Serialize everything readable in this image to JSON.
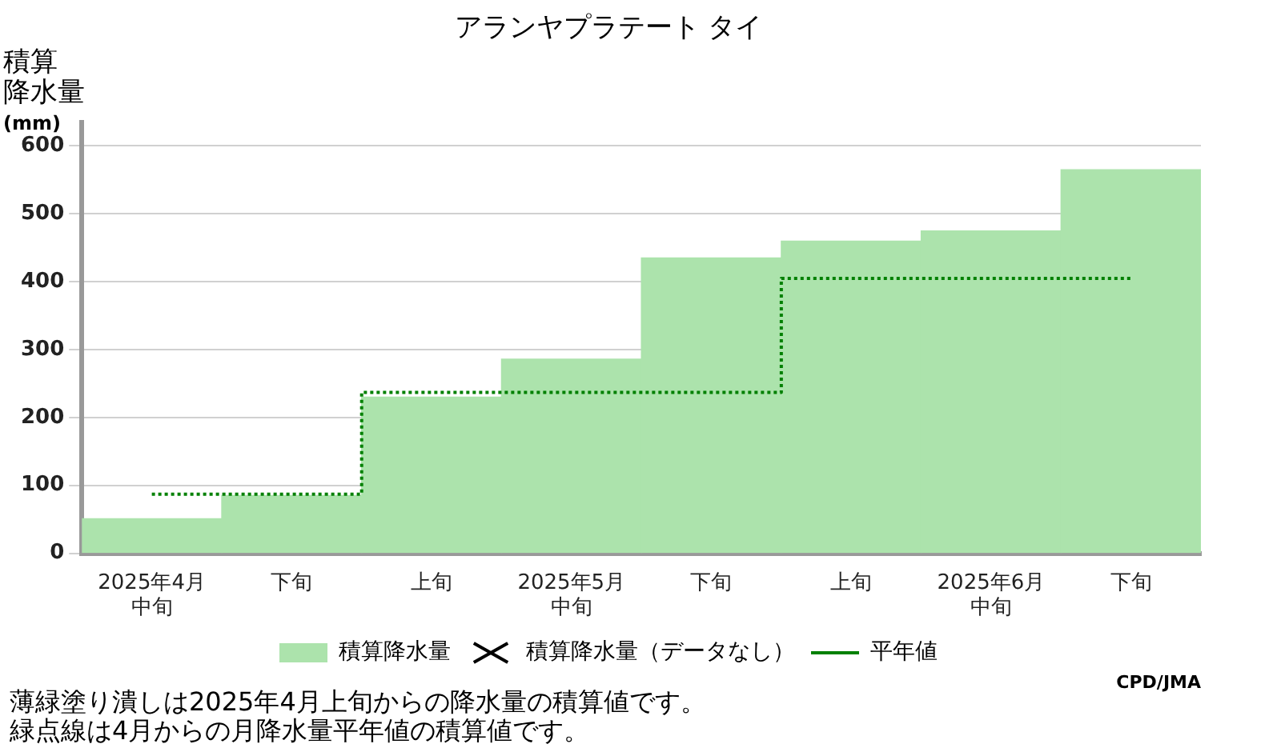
{
  "chart_data": {
    "type": "bar",
    "title": "アランヤプラテート タイ",
    "ylabel": "積算降水量(mm)",
    "categories": [
      "2025年4月中旬",
      "下旬",
      "上旬",
      "2025年5月中旬",
      "下旬",
      "上旬",
      "2025年6月中旬",
      "下旬"
    ],
    "series": [
      {
        "name": "積算降水量",
        "color": "#ace3ac",
        "values": [
          51,
          85,
          230,
          286,
          435,
          460,
          475,
          565
        ]
      },
      {
        "name": "積算降水量（データなし）",
        "type": "scatter",
        "marker": "cross",
        "color": "#000000",
        "values": [
          null,
          null,
          null,
          null,
          null,
          null,
          null,
          null
        ]
      },
      {
        "name": "平年値",
        "type": "step",
        "line_style": "dotted",
        "color": "#008000",
        "values": [
          87,
          87,
          237,
          237,
          237,
          405,
          405,
          405
        ]
      }
    ],
    "ylim": [
      0,
      635
    ],
    "yticks": [
      0,
      100,
      200,
      300,
      400,
      500,
      600
    ],
    "grid": "y",
    "legend": "bottom",
    "annotations": [
      "CPD/JMA",
      "薄緑塗り潰しは2025年4月上旬からの降水量の積算値です。",
      "緑点線は4月からの月降水量平年値の積算値です。"
    ]
  }
}
